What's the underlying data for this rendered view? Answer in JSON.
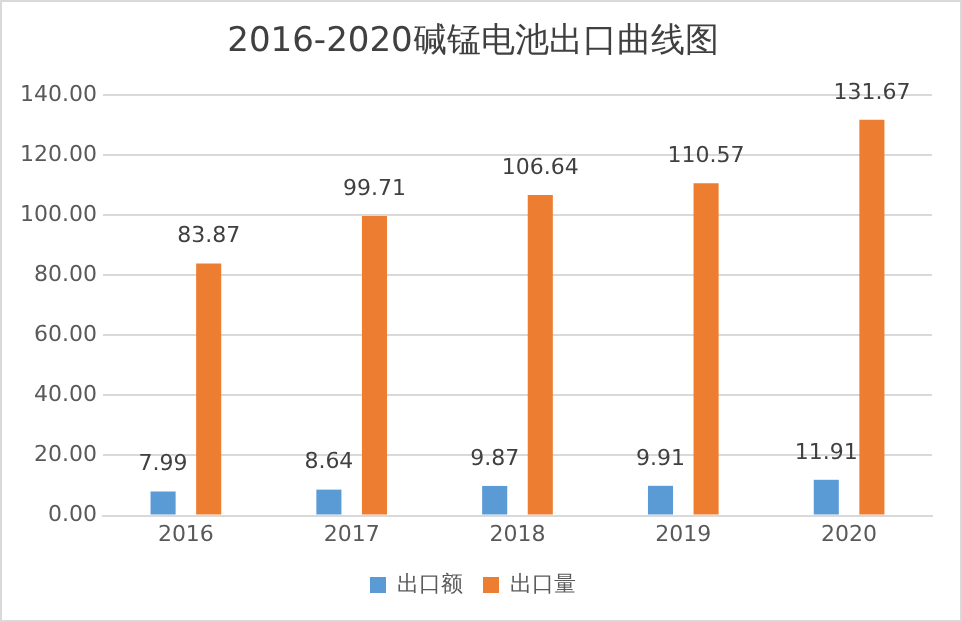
{
  "chart_data": {
    "type": "bar",
    "title": "2016-2020碱锰电池出口曲线图",
    "categories": [
      "2016",
      "2017",
      "2018",
      "2019",
      "2020"
    ],
    "series": [
      {
        "name": "出口额",
        "color": "#5b9bd5",
        "values": [
          7.99,
          8.64,
          9.87,
          9.91,
          11.91
        ]
      },
      {
        "name": "出口量",
        "color": "#ed7d31",
        "values": [
          83.87,
          99.71,
          106.64,
          110.57,
          131.67
        ]
      }
    ],
    "ylim": [
      0,
      140
    ],
    "yticks": [
      {
        "value": 0,
        "label": "0.00"
      },
      {
        "value": 20,
        "label": "20.00"
      },
      {
        "value": 40,
        "label": "40.00"
      },
      {
        "value": 60,
        "label": "60.00"
      },
      {
        "value": 80,
        "label": "80.00"
      },
      {
        "value": 100,
        "label": "100.00"
      },
      {
        "value": 120,
        "label": "120.00"
      },
      {
        "value": 140,
        "label": "140.00"
      }
    ],
    "grid": "y",
    "legend": "bottom",
    "data_labels": true
  }
}
